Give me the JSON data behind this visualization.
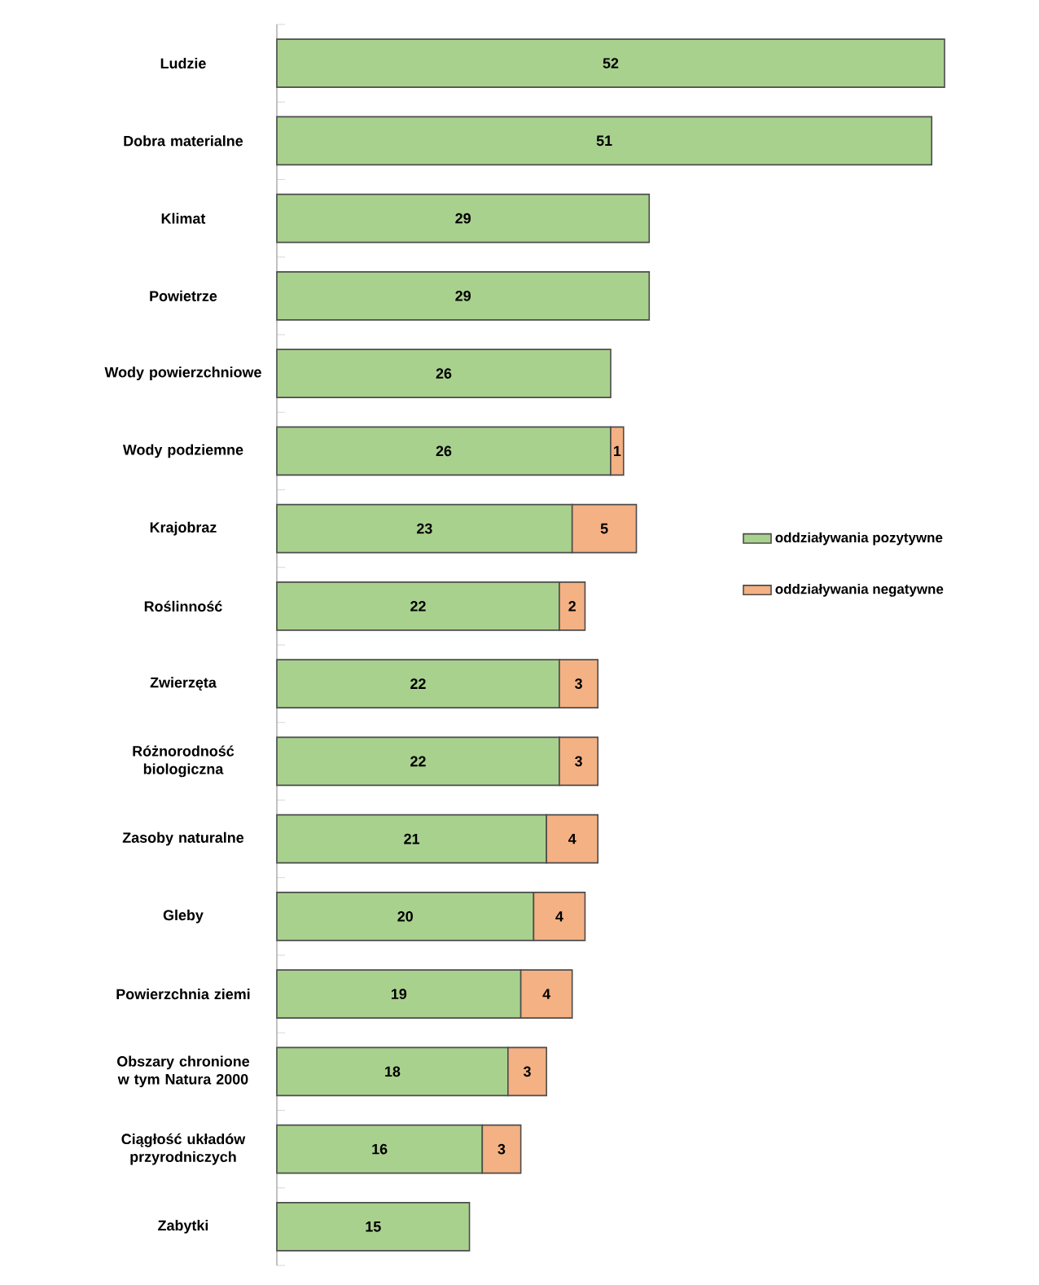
{
  "chart_data": {
    "type": "bar",
    "orientation": "horizontal",
    "stacked": true,
    "data_labels": true,
    "legend": "right",
    "categories": [
      "Ludzie",
      "Dobra materialne",
      "Klimat",
      "Powietrze",
      "Wody powierzchniowe",
      "Wody podziemne",
      "Krajobraz",
      "Roślinność",
      "Zwierzęta",
      "Różnorodność biologiczna",
      "Zasoby naturalne",
      "Gleby",
      "Powierzchnia ziemi",
      "Obszary chronione w tym Natura 2000",
      "Ciągłość układów przyrodniczych",
      "Zabytki"
    ],
    "series": [
      {
        "name": "oddziaływania pozytywne",
        "color": "#a9d18e",
        "values": [
          52,
          51,
          29,
          29,
          26,
          26,
          23,
          22,
          22,
          22,
          21,
          20,
          19,
          18,
          16,
          15
        ]
      },
      {
        "name": "oddziaływania negatywne",
        "color": "#f4b183",
        "values": [
          null,
          null,
          null,
          null,
          null,
          1,
          5,
          2,
          3,
          3,
          4,
          4,
          4,
          3,
          3,
          null
        ]
      }
    ]
  }
}
